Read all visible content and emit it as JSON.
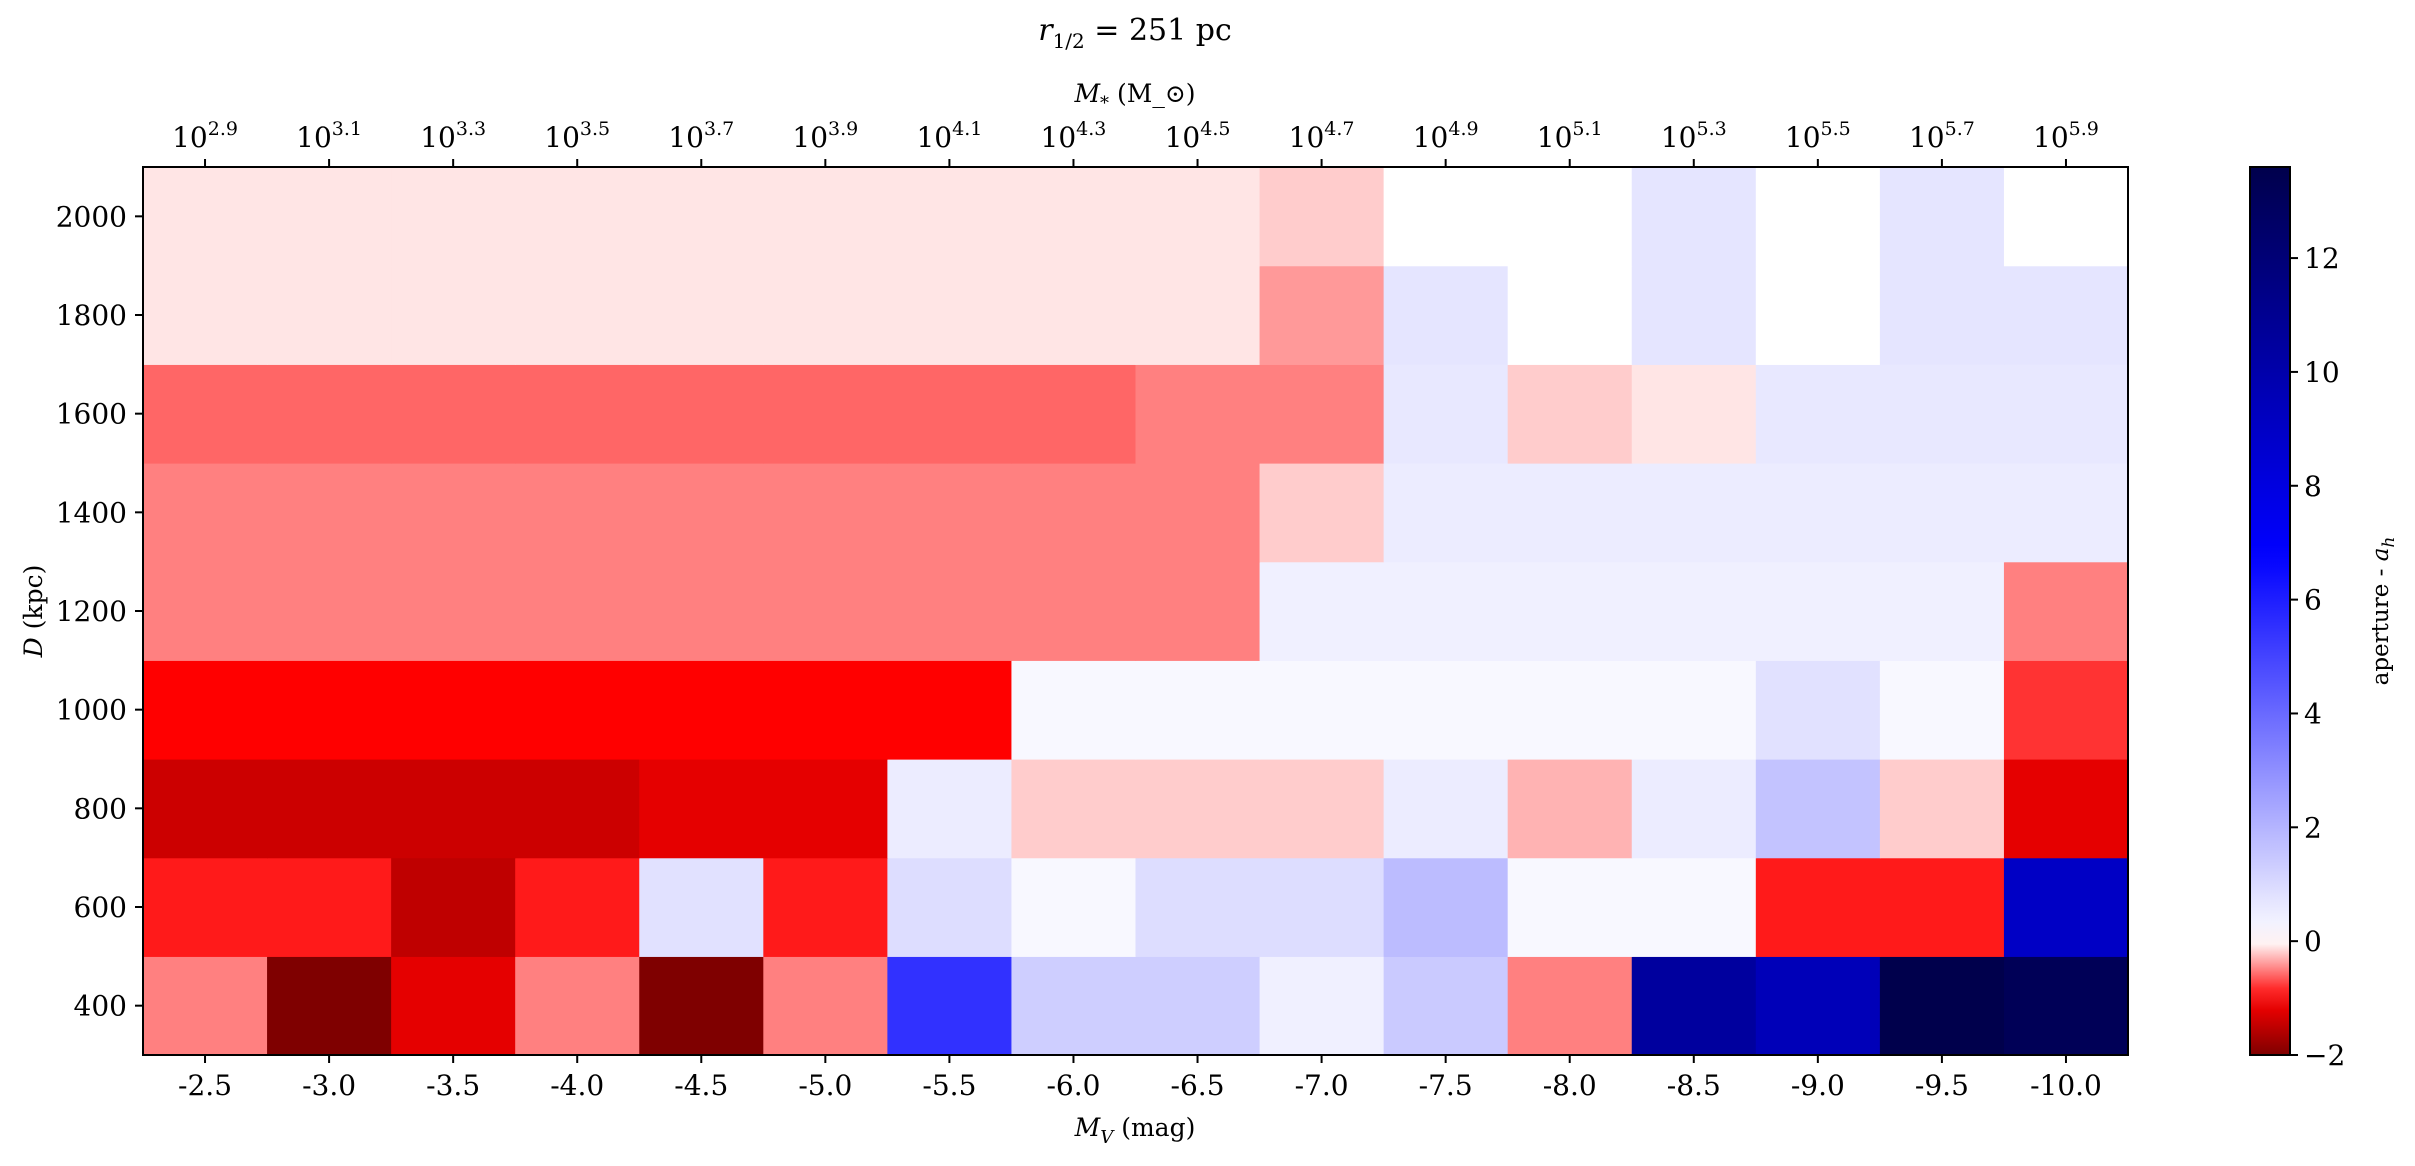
{
  "chart_data": {
    "type": "heatmap",
    "title": "r_{1/2} = 251 pc",
    "xlabel": "M_V (mag)",
    "ylabel": "D (kpc)",
    "x2label": "M_* (M_⊙)",
    "colorbar_label": "aperture - a_h",
    "colormap": "seismic_r",
    "color_range": [
      -2,
      13.6
    ],
    "colorbar_ticks": [
      "−2",
      "0",
      "2",
      "4",
      "6",
      "8",
      "10",
      "12"
    ],
    "colorbar_tick_values": [
      -2,
      0,
      2,
      4,
      6,
      8,
      10,
      12
    ],
    "x_categories": [
      "-2.5",
      "-3.0",
      "-3.5",
      "-4.0",
      "-4.5",
      "-5.0",
      "-5.5",
      "-6.0",
      "-6.5",
      "-7.0",
      "-7.5",
      "-8.0",
      "-8.5",
      "-9.0",
      "-9.5",
      "-10.0"
    ],
    "top_tick_labels": [
      {
        "base": "10",
        "exp": "2.9"
      },
      {
        "base": "10",
        "exp": "3.1"
      },
      {
        "base": "10",
        "exp": "3.3"
      },
      {
        "base": "10",
        "exp": "3.5"
      },
      {
        "base": "10",
        "exp": "3.7"
      },
      {
        "base": "10",
        "exp": "3.9"
      },
      {
        "base": "10",
        "exp": "4.1"
      },
      {
        "base": "10",
        "exp": "4.3"
      },
      {
        "base": "10",
        "exp": "4.5"
      },
      {
        "base": "10",
        "exp": "4.7"
      },
      {
        "base": "10",
        "exp": "4.9"
      },
      {
        "base": "10",
        "exp": "5.1"
      },
      {
        "base": "10",
        "exp": "5.3"
      },
      {
        "base": "10",
        "exp": "5.5"
      },
      {
        "base": "10",
        "exp": "5.7"
      },
      {
        "base": "10",
        "exp": "5.9"
      }
    ],
    "y_rows": [
      400,
      600,
      800,
      1000,
      1200,
      1400,
      1600,
      1800,
      2000
    ],
    "y_ticks": [
      "400",
      "600",
      "800",
      "1000",
      "1200",
      "1400",
      "1600",
      "1800",
      "2000"
    ],
    "y_tick_values": [
      400,
      600,
      800,
      1000,
      1200,
      1400,
      1600,
      1800,
      2000
    ],
    "ylim": [
      300,
      2100
    ],
    "values": [
      [
        -0.5,
        -2.0,
        -1.2,
        -0.5,
        -2.0,
        -0.5,
        5.5,
        1.3,
        1.3,
        0.4,
        1.4,
        -0.5,
        10.5,
        9.5,
        13.6,
        13.2
      ],
      [
        -0.9,
        -0.9,
        -1.5,
        -0.9,
        0.8,
        -0.9,
        0.9,
        0.2,
        0.9,
        0.9,
        1.8,
        0.2,
        0.2,
        -0.9,
        -0.9,
        9.0
      ],
      [
        -1.4,
        -1.4,
        -1.4,
        -1.4,
        -1.2,
        -1.2,
        0.5,
        -0.2,
        -0.2,
        -0.2,
        0.5,
        -0.3,
        0.5,
        1.6,
        -0.2,
        -1.2
      ],
      [
        -1.0,
        -1.0,
        -1.0,
        -1.0,
        -1.0,
        -1.0,
        -1.0,
        0.2,
        0.2,
        0.2,
        0.2,
        0.2,
        0.2,
        0.8,
        0.2,
        -0.8
      ],
      [
        -0.5,
        -0.5,
        -0.5,
        -0.5,
        -0.5,
        -0.5,
        -0.5,
        -0.5,
        -0.5,
        0.4,
        0.4,
        0.4,
        0.4,
        0.4,
        0.4,
        -0.5
      ],
      [
        -0.5,
        -0.5,
        -0.5,
        -0.5,
        -0.5,
        -0.5,
        -0.5,
        -0.5,
        -0.5,
        -0.2,
        0.5,
        0.5,
        0.5,
        0.5,
        0.5,
        0.5
      ],
      [
        -0.6,
        -0.6,
        -0.6,
        -0.6,
        -0.6,
        -0.6,
        -0.6,
        -0.6,
        -0.5,
        -0.5,
        0.6,
        -0.2,
        -0.1,
        0.6,
        0.6,
        0.6
      ],
      [
        -0.1,
        -0.1,
        -0.1,
        -0.1,
        -0.1,
        -0.1,
        -0.1,
        -0.1,
        -0.1,
        -0.4,
        0.7,
        0.0,
        0.7,
        0.0,
        0.7,
        0.7
      ],
      [
        -0.1,
        -0.1,
        -0.1,
        -0.1,
        -0.1,
        -0.1,
        -0.1,
        -0.1,
        -0.1,
        -0.2,
        0.0,
        0.0,
        0.7,
        0.0,
        0.7,
        0.0
      ]
    ]
  }
}
